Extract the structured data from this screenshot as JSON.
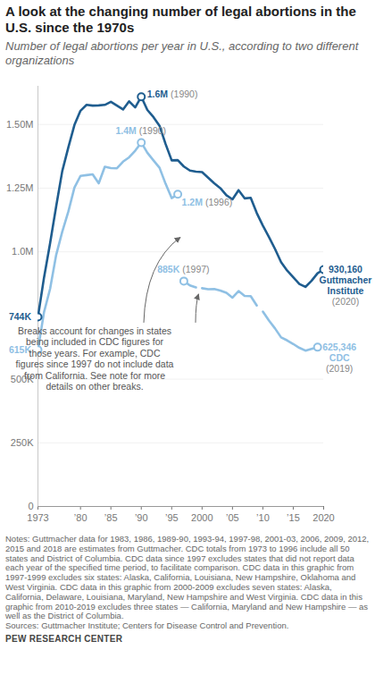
{
  "chart_data": {
    "type": "line",
    "title": "A look at the changing number of legal abortions in the U.S. since the 1970s",
    "subtitle": "Number of legal abortions per year in U.S., according to two different organizations",
    "x": [
      1973,
      1974,
      1975,
      1976,
      1977,
      1978,
      1979,
      1980,
      1981,
      1982,
      1983,
      1984,
      1985,
      1986,
      1987,
      1988,
      1989,
      1990,
      1991,
      1992,
      1993,
      1994,
      1995,
      1996,
      1997,
      1998,
      1999,
      2000,
      2001,
      2002,
      2003,
      2004,
      2005,
      2006,
      2007,
      2008,
      2009,
      2010,
      2011,
      2012,
      2013,
      2014,
      2015,
      2016,
      2017,
      2018,
      2019,
      2020
    ],
    "series": [
      {
        "name": "Guttmacher Institute",
        "color": "#1f5d8f",
        "values": [
          744000,
          899000,
          1034000,
          1179000,
          1317000,
          1410000,
          1498000,
          1554000,
          1577000,
          1574000,
          1575000,
          1577000,
          1589000,
          1574000,
          1559000,
          1591000,
          1567000,
          1609000,
          1557000,
          1529000,
          1495000,
          1423000,
          1359000,
          1360000,
          1335000,
          1319000,
          1315000,
          1313000,
          1291000,
          1269000,
          1250000,
          1222000,
          1206000,
          1242000,
          1210000,
          1212000,
          1152000,
          1103000,
          1058000,
          1011000,
          959000,
          926000,
          900000,
          874000,
          862000,
          886000,
          916000,
          930160
        ]
      },
      {
        "name": "CDC",
        "color": "#8fc0e4",
        "segment_starts": [
          1973,
          1997,
          2000,
          2010
        ],
        "values": [
          615000,
          763000,
          855000,
          988000,
          1079000,
          1158000,
          1252000,
          1298000,
          1301000,
          1304000,
          1269000,
          1334000,
          1329000,
          1328000,
          1354000,
          1371000,
          1397000,
          1429000,
          1389000,
          1359000,
          1330000,
          1267000,
          1211000,
          1226000,
          885000,
          868000,
          860000,
          857000,
          853000,
          854000,
          848000,
          839000,
          820000,
          846000,
          827000,
          826000,
          789000,
          765000,
          730000,
          699000,
          664000,
          652000,
          638000,
          623000,
          612000,
          619000,
          625346,
          null
        ]
      }
    ],
    "xlim": [
      1973,
      2020
    ],
    "xticks": [
      1973,
      {
        "value": 1980,
        "label": "’80"
      },
      {
        "value": 1985,
        "label": "’85"
      },
      {
        "value": 1990,
        "label": "’90"
      },
      {
        "value": 1995,
        "label": "’95"
      },
      2000,
      {
        "value": 2005,
        "label": "’05"
      },
      {
        "value": 2010,
        "label": "’10"
      },
      {
        "value": 2015,
        "label": "’15"
      },
      2020
    ],
    "ylim": [
      0,
      1650000
    ],
    "yticks": [
      0,
      {
        "value": 250000,
        "label": "250K"
      },
      {
        "value": 500000,
        "label": "500K"
      },
      {
        "value": 1000000,
        "label": "1.0M"
      },
      {
        "value": 1250000,
        "label": "1.25M"
      },
      {
        "value": 1500000,
        "label": "1.50M"
      }
    ],
    "grid": true,
    "annotations": [
      {
        "series": "Guttmacher Institute",
        "x": 1973,
        "label": "744K"
      },
      {
        "series": "CDC",
        "x": 1973,
        "label": "615K"
      },
      {
        "series": "Guttmacher Institute",
        "x": 1990,
        "label": "1.6M",
        "detail": "(1990)"
      },
      {
        "series": "CDC",
        "x": 1990,
        "label": "1.4M",
        "detail": "(1990)"
      },
      {
        "series": "CDC",
        "x": 1996,
        "label": "1.2M",
        "detail": "(1996)"
      },
      {
        "series": "CDC",
        "x": 1997,
        "label": "885K",
        "detail": "(1997)"
      },
      {
        "series": "Guttmacher Institute",
        "x": 2020,
        "label": "930,160",
        "detail": "(2020)"
      },
      {
        "series": "CDC",
        "x": 2019,
        "label": "625,346",
        "detail": "(2019)"
      }
    ],
    "callout": "Breaks account for changes in states being included in CDC figures for those years. For example, CDC figures since 1997 do not include data from California. See note for more details on other breaks.",
    "notes": "Notes: Guttmacher data for 1983, 1986, 1989-90, 1993-94, 1997-98, 2001-03, 2006, 2009, 2012, 2015 and 2018 are estimates from Guttmacher. CDC totals from 1973 to 1996 include all 50 states and District of Columbia. CDC data since 1997 excludes states that did not report data each year of the specified time period, to facilitate comparison. CDC data in this graphic from 1997-1999 excludes six states: Alaska, California, Louisiana, New Hampshire, Oklahoma and West Virginia. CDC data in this graphic from 2000-2009 excludes seven states: Alaska, California, Delaware, Louisiana, Maryland, New Hampshire and West Virginia. CDC data in this graphic from 2010-2019 excludes three states — California, Maryland and New Hampshire — as well as the District of Columbia.",
    "source": "Sources: Guttmacher Institute; Centers for Disease Control and Prevention.",
    "credit": "PEW RESEARCH CENTER"
  }
}
